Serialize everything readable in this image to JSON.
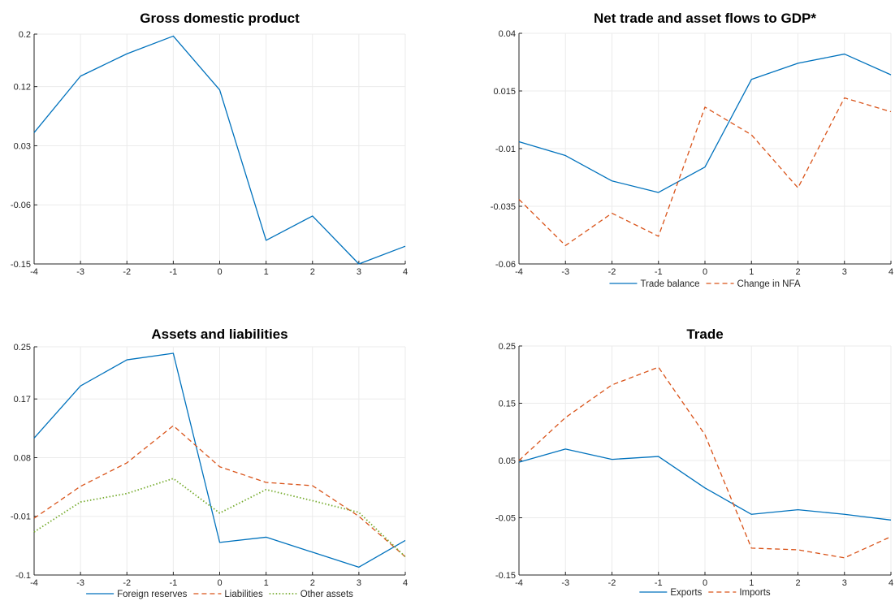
{
  "chart_data": [
    {
      "type": "line",
      "title": "Gross domestic product",
      "x": [
        -4,
        -3,
        -2,
        -1,
        0,
        1,
        2,
        3,
        4
      ],
      "xticks": [
        -4,
        -3,
        -2,
        -1,
        0,
        1,
        2,
        3,
        4
      ],
      "ylim": [
        -0.15,
        0.2
      ],
      "yticks": [
        -0.15,
        -0.06,
        0.03,
        0.12,
        0.2
      ],
      "ytick_labels": [
        "-0.15",
        "-0.06",
        "0.03",
        "0.12",
        "0.2"
      ],
      "grid": true,
      "legend": "none",
      "series": [
        {
          "values": [
            0.05,
            0.136,
            0.17,
            0.197,
            0.115,
            -0.114,
            -0.077,
            -0.15,
            -0.123
          ],
          "color": "#0072BD",
          "style": "solid"
        }
      ]
    },
    {
      "type": "line",
      "title": "Net trade and asset flows to GDP*",
      "x": [
        -4,
        -3,
        -2,
        -1,
        0,
        1,
        2,
        3,
        4
      ],
      "xticks": [
        -4,
        -3,
        -2,
        -1,
        0,
        1,
        2,
        3,
        4
      ],
      "ylim": [
        -0.06,
        0.04
      ],
      "yticks": [
        -0.06,
        -0.035,
        -0.01,
        0.015,
        0.04
      ],
      "ytick_labels": [
        "-0.06",
        "-0.035",
        "-0.01",
        "0.015",
        "0.04"
      ],
      "grid": true,
      "legend": "bottom",
      "series": [
        {
          "name": "Trade balance",
          "values": [
            -0.007,
            -0.013,
            -0.024,
            -0.029,
            -0.018,
            0.02,
            0.027,
            0.031,
            0.022
          ],
          "color": "#0072BD",
          "style": "solid"
        },
        {
          "name": "Change in NFA",
          "values": [
            -0.032,
            -0.052,
            -0.038,
            -0.048,
            0.008,
            -0.004,
            -0.027,
            0.012,
            0.006
          ],
          "color": "#D95319",
          "style": "dashed"
        }
      ]
    },
    {
      "type": "line",
      "title": "Assets and liabilities",
      "x": [
        -4,
        -3,
        -2,
        -1,
        0,
        1,
        2,
        3,
        4
      ],
      "xticks": [
        -4,
        -3,
        -2,
        -1,
        0,
        1,
        2,
        3,
        4
      ],
      "ylim": [
        -0.1,
        0.25
      ],
      "yticks": [
        -0.1,
        -0.01,
        0.08,
        0.17,
        0.25
      ],
      "ytick_labels": [
        "-0.1",
        "-0.01",
        "0.08",
        "0.17",
        "0.25"
      ],
      "grid": true,
      "legend": "bottom",
      "series": [
        {
          "name": "Foreign reserves",
          "values": [
            0.11,
            0.19,
            0.23,
            0.24,
            -0.05,
            -0.042,
            -0.065,
            -0.088,
            -0.047
          ],
          "color": "#0072BD",
          "style": "solid"
        },
        {
          "name": "Liabilities",
          "values": [
            -0.013,
            0.036,
            0.072,
            0.129,
            0.066,
            0.042,
            0.037,
            -0.01,
            -0.072
          ],
          "color": "#D95319",
          "style": "dashed"
        },
        {
          "name": "Other assets",
          "values": [
            -0.034,
            0.012,
            0.025,
            0.048,
            -0.005,
            0.031,
            0.014,
            -0.004,
            -0.072
          ],
          "color": "#77AC30",
          "style": "dotted"
        }
      ]
    },
    {
      "type": "line",
      "title": "Trade",
      "x": [
        -4,
        -3,
        -2,
        -1,
        0,
        1,
        2,
        3,
        4
      ],
      "xticks": [
        -4,
        -3,
        -2,
        -1,
        0,
        1,
        2,
        3,
        4
      ],
      "ylim": [
        -0.15,
        0.25
      ],
      "yticks": [
        -0.15,
        -0.05,
        0.05,
        0.15,
        0.25
      ],
      "ytick_labels": [
        "-0.15",
        "-0.05",
        "0.05",
        "0.15",
        "0.25"
      ],
      "grid": true,
      "legend": "bottom",
      "series": [
        {
          "name": "Exports",
          "values": [
            0.047,
            0.07,
            0.052,
            0.057,
            0.002,
            -0.044,
            -0.036,
            -0.044,
            -0.054
          ],
          "color": "#0072BD",
          "style": "solid"
        },
        {
          "name": "Imports",
          "values": [
            0.05,
            0.125,
            0.182,
            0.213,
            0.095,
            -0.103,
            -0.106,
            -0.12,
            -0.083
          ],
          "color": "#D95319",
          "style": "dashed"
        }
      ]
    }
  ]
}
